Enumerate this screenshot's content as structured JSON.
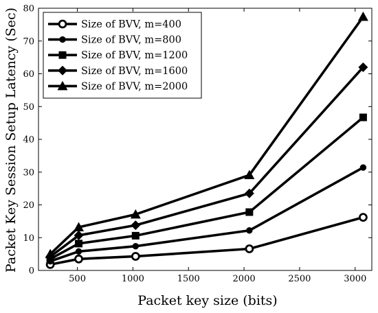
{
  "chart_data": {
    "type": "line",
    "title": "",
    "xlabel": "Packet key size (bits)",
    "ylabel": "Packet Key Session Setup Latency (Sec)",
    "xlim": [
      150,
      3150
    ],
    "ylim": [
      0,
      80
    ],
    "x_ticks": [
      500,
      1000,
      1500,
      2000,
      2500,
      3000
    ],
    "y_ticks": [
      0,
      10,
      20,
      30,
      40,
      50,
      60,
      70,
      80
    ],
    "grid": false,
    "legend_position": "top-left",
    "x": [
      256,
      512,
      1024,
      2048,
      3072
    ],
    "series": [
      {
        "name": "Size of BVV, m=400",
        "marker": "circle-open",
        "values": [
          1.8,
          3.5,
          4.3,
          6.6,
          16.2
        ]
      },
      {
        "name": "Size of BVV, m=800",
        "marker": "dot",
        "values": [
          2.8,
          5.8,
          7.4,
          12.2,
          31.4
        ]
      },
      {
        "name": "Size of BVV, m=1200",
        "marker": "square",
        "values": [
          3.5,
          8.2,
          10.6,
          17.8,
          46.7
        ]
      },
      {
        "name": "Size of BVV, m=1600",
        "marker": "diamond",
        "values": [
          4.2,
          10.7,
          13.8,
          23.5,
          62.0
        ]
      },
      {
        "name": "Size of BVV, m=2000",
        "marker": "triangle",
        "values": [
          5.0,
          13.2,
          17.1,
          29.1,
          77.4
        ]
      }
    ],
    "colors": {
      "line": "#000000",
      "background": "#ffffff"
    }
  }
}
